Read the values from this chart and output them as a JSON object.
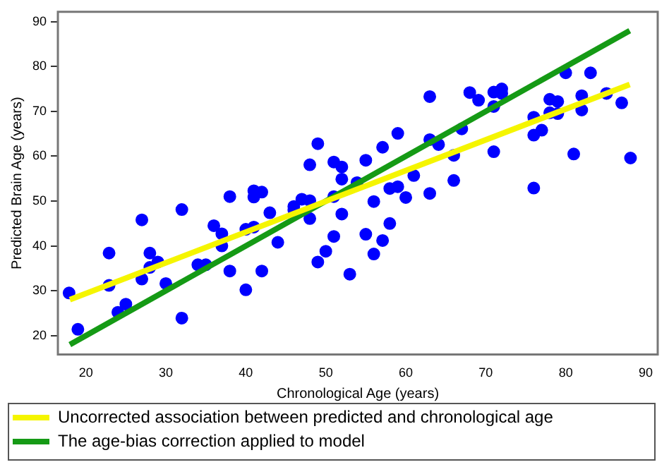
{
  "chart_data": {
    "type": "scatter",
    "xlabel": "Chronological Age (years)",
    "ylabel": "Predicted Brain Age (years)",
    "xlim": [
      16.5,
      91.5
    ],
    "ylim": [
      15.8,
      92.2
    ],
    "xticks": [
      20,
      30,
      40,
      50,
      60,
      70,
      80,
      90
    ],
    "yticks": [
      20,
      30,
      40,
      50,
      60,
      70,
      80,
      90
    ],
    "grid": false,
    "legend": "bottom",
    "series": [
      {
        "marker": "circle",
        "color": "#0000ff",
        "x": [
          17.9,
          19.0,
          22.9,
          22.9,
          24.0,
          25.0,
          27.0,
          27.0,
          28.0,
          28.0,
          29.0,
          30.0,
          32.0,
          32.0,
          34.0,
          35.0,
          36.0,
          37.0,
          37.0,
          38.0,
          38.0,
          40.0,
          40.0,
          41.0,
          41.0,
          41.0,
          42.0,
          42.0,
          43.0,
          44.0,
          46.0,
          46.0,
          47.0,
          48.0,
          48.0,
          48.0,
          49.0,
          49.0,
          50.0,
          51.0,
          51.0,
          51.0,
          52.0,
          52.0,
          52.0,
          53.0,
          53.9,
          55.0,
          55.0,
          56.0,
          56.0,
          57.1,
          57.1,
          58.0,
          58.0,
          59.0,
          59.0,
          60.0,
          61.0,
          63.0,
          63.0,
          63.0,
          64.1,
          66.0,
          66.0,
          67.0,
          68.0,
          69.1,
          71.0,
          71.0,
          71.0,
          72.0,
          72.0,
          76.0,
          76.0,
          76.0,
          77.0,
          78.0,
          78.0,
          79.0,
          79.0,
          80.0,
          81.0,
          82.0,
          82.0,
          83.1,
          85.1,
          87.0,
          88.1
        ],
        "values": [
          29.5,
          21.4,
          38.4,
          31.2,
          25.2,
          27.0,
          45.8,
          32.6,
          38.4,
          35.2,
          36.4,
          31.6,
          48.1,
          23.9,
          35.8,
          35.8,
          44.5,
          42.7,
          40.0,
          51.0,
          34.4,
          43.7,
          30.2,
          52.3,
          50.9,
          44.2,
          52.0,
          34.4,
          47.4,
          40.8,
          48.8,
          48.0,
          50.4,
          58.1,
          50.1,
          46.1,
          36.4,
          62.8,
          38.8,
          58.7,
          51.0,
          42.1,
          57.6,
          54.9,
          47.1,
          33.7,
          54.1,
          59.1,
          42.6,
          49.9,
          38.2,
          41.2,
          62.0,
          52.8,
          45.0,
          53.2,
          65.1,
          50.8,
          55.7,
          51.7,
          73.3,
          63.7,
          62.6,
          60.2,
          54.6,
          66.1,
          74.2,
          72.5,
          74.3,
          71.1,
          61.0,
          75.0,
          74.0,
          68.7,
          64.7,
          52.9,
          65.8,
          72.7,
          69.7,
          72.2,
          69.5,
          78.6,
          60.5,
          73.5,
          70.3,
          78.6,
          74.0,
          71.9,
          59.6
        ]
      },
      {
        "type": "line",
        "name": "Uncorrected association between predicted and chronological age",
        "color": "#f5f500",
        "marker": "none",
        "x": [
          18,
          88
        ],
        "values": [
          28,
          76
        ]
      },
      {
        "type": "line",
        "name": "The age-bias correction applied to model",
        "color": "#159a15",
        "marker": "none",
        "x": [
          18,
          88
        ],
        "values": [
          18,
          88
        ]
      }
    ]
  }
}
